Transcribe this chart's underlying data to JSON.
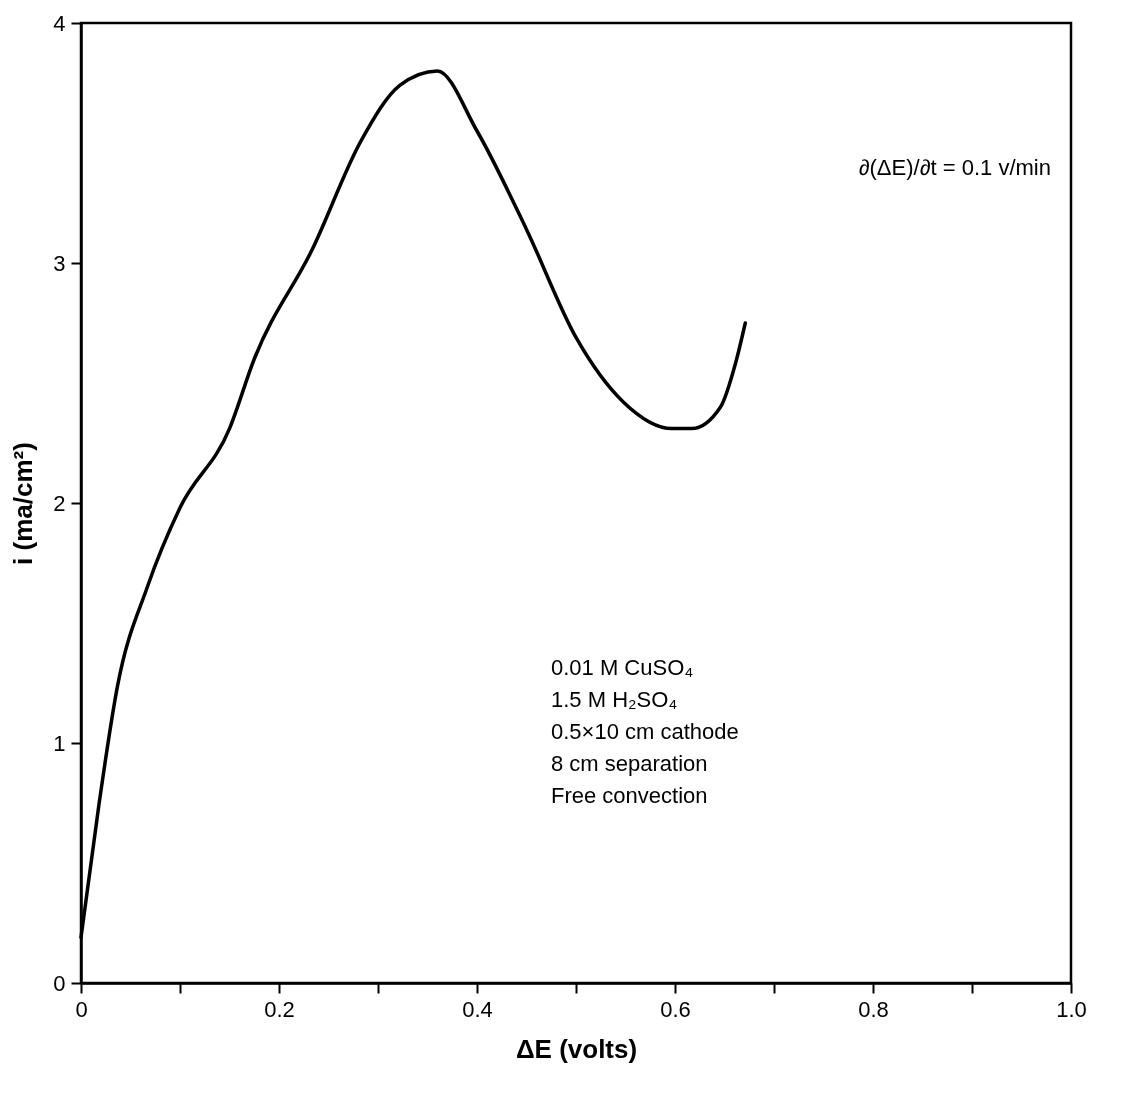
{
  "chart_data": {
    "type": "line",
    "xlabel": "ΔE (volts)",
    "ylabel": "i (ma/cm²)",
    "x": [
      0,
      0.018,
      0.037,
      0.067,
      0.1,
      0.15,
      0.175,
      0.234,
      0.283,
      0.322,
      0.36,
      0.4,
      0.45,
      0.5,
      0.548,
      0.597,
      0.617,
      0.646,
      0.661,
      0.671
    ],
    "series": [
      {
        "color": "#000000",
        "values": [
          0.19,
          0.74,
          1.24,
          1.65,
          1.98,
          2.31,
          2.6,
          3.06,
          3.51,
          3.74,
          3.8,
          3.55,
          3.14,
          2.69,
          2.42,
          2.31,
          2.31,
          2.4,
          2.58,
          2.75
        ]
      }
    ],
    "xlim": [
      0,
      1.0
    ],
    "ylim": [
      0,
      4
    ],
    "xticks": [
      0,
      {
        "value": 0.1,
        "label": null
      },
      0.2,
      {
        "value": 0.3,
        "label": null
      },
      0.4,
      {
        "value": 0.5,
        "label": null
      },
      0.6,
      {
        "value": 0.7,
        "label": null
      },
      0.8,
      {
        "value": 0.9,
        "label": null
      },
      {
        "value": 1.0,
        "label": "1.0"
      }
    ],
    "yticks": [
      0,
      1,
      2,
      3,
      4
    ],
    "grid": false,
    "marker": "none",
    "line_style": "solid",
    "annotations": [
      "∂(ΔE)/∂t = 0.1 v/min",
      "0.01 M CuSO₄",
      "1.5 M H₂SO₄",
      "0.5×10 cm cathode",
      "8 cm separation",
      "Free convection"
    ]
  }
}
